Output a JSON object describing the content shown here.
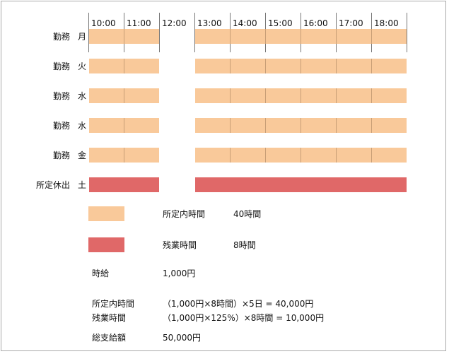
{
  "colors": {
    "work": "#f9c99a",
    "overtime": "#e06868"
  },
  "hours": [
    "10:00",
    "11:00",
    "12:00",
    "13:00",
    "14:00",
    "15:00",
    "16:00",
    "17:00",
    "18:00"
  ],
  "rows": [
    {
      "type": "勤務",
      "day": "月",
      "kind": "work"
    },
    {
      "type": "勤務",
      "day": "火",
      "kind": "work"
    },
    {
      "type": "勤務",
      "day": "水",
      "kind": "work"
    },
    {
      "type": "勤務",
      "day": "水",
      "kind": "work"
    },
    {
      "type": "勤務",
      "day": "金",
      "kind": "work"
    },
    {
      "type": "所定休出",
      "day": "土",
      "kind": "overtime"
    }
  ],
  "legend": [
    {
      "label": "所定内時間",
      "value": "40時間",
      "kind": "work"
    },
    {
      "label": "残業時間",
      "value": "8時間",
      "kind": "overtime"
    }
  ],
  "wage": {
    "label": "時給",
    "value": "1,000円"
  },
  "calc": [
    {
      "label": "所定内時間",
      "formula": "（1,000円×8時間）×5日 = 40,000円"
    },
    {
      "label": "残業時間",
      "formula": "（1,000円×125%）×8時間 = 10,000円"
    }
  ],
  "total": {
    "label": "総支給額",
    "value": "50,000円"
  }
}
